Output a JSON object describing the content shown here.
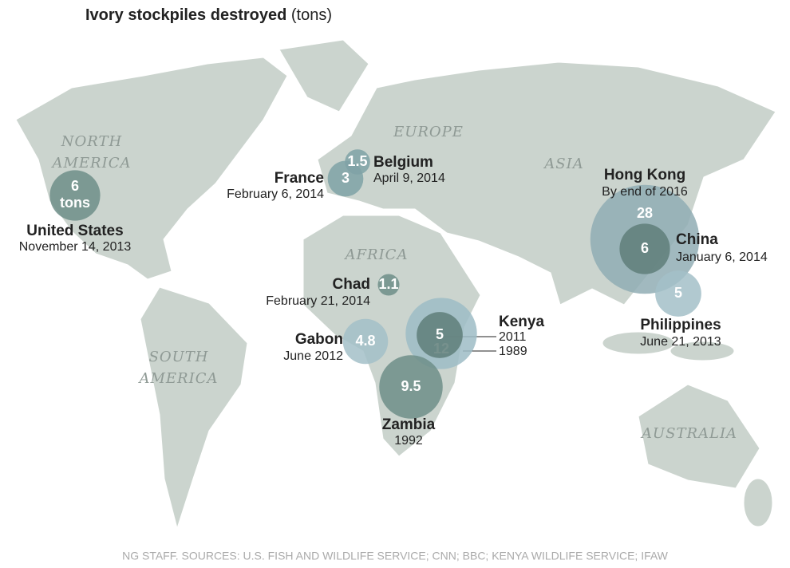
{
  "title": "Ivory stockpiles destroyed",
  "title_unit": "(tons)",
  "regions": [
    {
      "lines": [
        "NORTH",
        "AMERICA"
      ]
    },
    {
      "lines": [
        "EUROPE"
      ]
    },
    {
      "lines": [
        "ASIA"
      ]
    },
    {
      "lines": [
        "AFRICA"
      ]
    },
    {
      "lines": [
        "SOUTH",
        "AMERICA"
      ]
    },
    {
      "lines": [
        "AUSTRALIA"
      ]
    }
  ],
  "sites": [
    {
      "name": "United States",
      "events": [
        {
          "date": "November 14, 2013",
          "tons": 6,
          "unit": "tons",
          "color": "#6f8e88"
        }
      ]
    },
    {
      "name": "France",
      "events": [
        {
          "date": "February 6, 2014",
          "tons": 3,
          "color": "#7fa2a6"
        }
      ]
    },
    {
      "name": "Belgium",
      "events": [
        {
          "date": "April 9, 2014",
          "tons": 1.5,
          "color": "#7fa2a6"
        }
      ]
    },
    {
      "name": "Chad",
      "events": [
        {
          "date": "February 21, 2014",
          "tons": 1.1,
          "color": "#6f8e88"
        }
      ]
    },
    {
      "name": "Gabon",
      "events": [
        {
          "date": "June 2012",
          "tons": 4.8,
          "color": "#a3c0c8"
        }
      ]
    },
    {
      "name": "Kenya",
      "events": [
        {
          "date": "2011",
          "tons": 5,
          "color": "#5f7e79"
        },
        {
          "date": "1989",
          "tons": 12,
          "color": "#9dbcc5"
        }
      ]
    },
    {
      "name": "Zambia",
      "events": [
        {
          "date": "1992",
          "tons": 9.5,
          "color": "#6f8e88"
        }
      ]
    },
    {
      "name": "Hong Kong",
      "events": [
        {
          "date": "By end of 2016",
          "tons": 28,
          "color": "#90adb4"
        }
      ]
    },
    {
      "name": "China",
      "events": [
        {
          "date": "January 6, 2014",
          "tons": 6,
          "color": "#5f7e79"
        }
      ]
    },
    {
      "name": "Philippines",
      "events": [
        {
          "date": "June 21, 2013",
          "tons": 5,
          "color": "#a3c0c8"
        }
      ]
    }
  ],
  "source": "NG STAFF. SOURCES: U.S. FISH AND WILDLIFE SERVICE; CNN; BBC; KENYA WILDLIFE SERVICE; IFAW"
}
